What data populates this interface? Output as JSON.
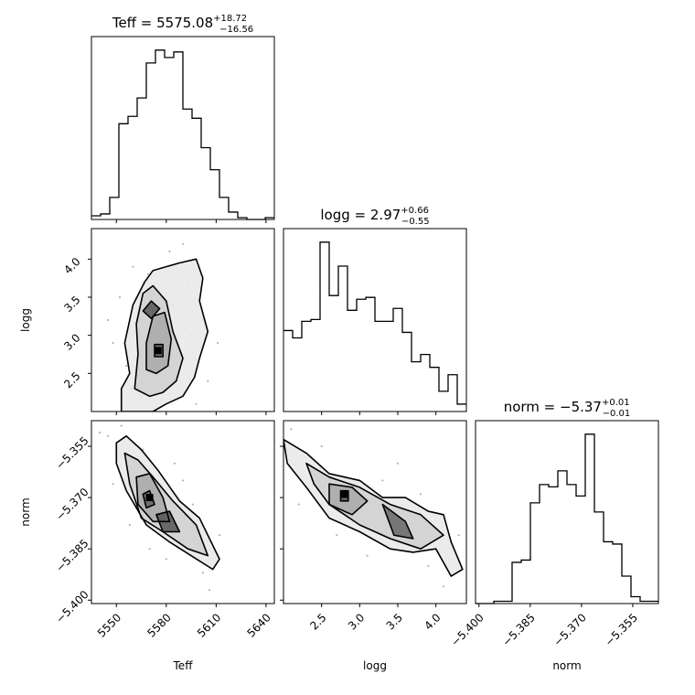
{
  "figure": {
    "type": "corner-plot"
  },
  "chart_data": [
    {
      "type": "histogram",
      "title_param": "Teff",
      "title_value": "5575.08",
      "title_plus": "+18.72",
      "title_minus": "−16.56",
      "x_range": [
        5535,
        5645
      ],
      "bin_edges_start": 5535,
      "bin_width": 5.5,
      "counts": [
        2,
        3,
        12,
        52,
        56,
        66,
        85,
        92,
        88,
        91,
        60,
        55,
        39,
        27,
        12,
        4,
        1,
        0,
        0,
        1
      ]
    },
    {
      "type": "histogram",
      "title_param": "logg",
      "title_value": "2.97",
      "title_plus": "+0.66",
      "title_minus": "−0.55",
      "x_range": [
        2.0,
        4.4
      ],
      "bin_edges_start": 2.0,
      "bin_width": 0.12,
      "counts": [
        44,
        40,
        49,
        50,
        92,
        63,
        79,
        55,
        61,
        62,
        49,
        49,
        56,
        43,
        27,
        31,
        24,
        11,
        20,
        4
      ]
    },
    {
      "type": "histogram",
      "title_param": "norm",
      "title_value": "−5.37",
      "title_plus": "+0.01",
      "title_minus": "−0.01",
      "x_range": [
        -5.401,
        -5.3475
      ],
      "bin_edges_start": -5.401,
      "bin_width": 0.002675,
      "counts": [
        0,
        0,
        1,
        1,
        18,
        19,
        44,
        52,
        51,
        58,
        52,
        47,
        74,
        40,
        27,
        26,
        12,
        3,
        1,
        1
      ]
    },
    {
      "type": "scatter-contour",
      "x_param": "Teff",
      "y_param": "logg",
      "x_range": [
        5535,
        5645
      ],
      "y_range": [
        2.0,
        4.4
      ],
      "center": [
        5575,
        2.8
      ],
      "contours": [
        [
          [
            5553,
            2.0
          ],
          [
            5553,
            2.3
          ],
          [
            5558,
            2.5
          ],
          [
            5555,
            2.9
          ],
          [
            5560,
            3.4
          ],
          [
            5567,
            3.7
          ],
          [
            5572,
            3.85
          ],
          [
            5580,
            3.9
          ],
          [
            5588,
            3.95
          ],
          [
            5598,
            4.0
          ],
          [
            5602,
            3.75
          ],
          [
            5600,
            3.45
          ],
          [
            5605,
            3.05
          ],
          [
            5600,
            2.7
          ],
          [
            5597,
            2.45
          ],
          [
            5590,
            2.2
          ],
          [
            5580,
            2.1
          ],
          [
            5572,
            2.0
          ]
        ],
        [
          [
            5561,
            2.3
          ],
          [
            5563,
            2.75
          ],
          [
            5562,
            3.15
          ],
          [
            5566,
            3.55
          ],
          [
            5572,
            3.65
          ],
          [
            5580,
            3.45
          ],
          [
            5584,
            3.05
          ],
          [
            5590,
            2.7
          ],
          [
            5586,
            2.4
          ],
          [
            5578,
            2.25
          ],
          [
            5570,
            2.2
          ]
        ],
        [
          [
            5568,
            2.55
          ],
          [
            5568,
            2.9
          ],
          [
            5572,
            3.25
          ],
          [
            5579,
            3.3
          ],
          [
            5583,
            2.95
          ],
          [
            5581,
            2.6
          ],
          [
            5574,
            2.5
          ]
        ],
        [
          [
            5573,
            2.72
          ],
          [
            5573,
            2.88
          ],
          [
            5578,
            2.88
          ],
          [
            5578,
            2.72
          ]
        ],
        [
          [
            5566,
            3.32
          ],
          [
            5571,
            3.45
          ],
          [
            5576,
            3.35
          ],
          [
            5571,
            3.22
          ]
        ]
      ],
      "points": [
        [
          5556,
          2.6
        ],
        [
          5560,
          3.9
        ],
        [
          5590,
          4.2
        ],
        [
          5602,
          3.2
        ],
        [
          5548,
          2.9
        ],
        [
          5565,
          2.2
        ],
        [
          5593,
          3.7
        ],
        [
          5605,
          2.4
        ],
        [
          5552,
          3.5
        ],
        [
          5582,
          4.1
        ],
        [
          5574,
          2.0
        ],
        [
          5611,
          2.9
        ],
        [
          5545,
          3.2
        ],
        [
          5587,
          2.5
        ],
        [
          5569,
          3.8
        ],
        [
          5598,
          2.1
        ],
        [
          5559,
          2.3
        ],
        [
          5584,
          3.4
        ],
        [
          5566,
          3.0
        ],
        [
          5595,
          3.0
        ]
      ]
    },
    {
      "type": "scatter-contour",
      "x_param": "Teff",
      "y_param": "norm",
      "x_range": [
        5535,
        5645
      ],
      "y_range": [
        -5.401,
        -5.3475
      ],
      "center": [
        5570,
        -5.37
      ],
      "contours": [
        [
          [
            5550,
            -5.354
          ],
          [
            5556,
            -5.352
          ],
          [
            5565,
            -5.356
          ],
          [
            5575,
            -5.362
          ],
          [
            5588,
            -5.371
          ],
          [
            5600,
            -5.376
          ],
          [
            5612,
            -5.388
          ],
          [
            5608,
            -5.391
          ],
          [
            5595,
            -5.387
          ],
          [
            5582,
            -5.383
          ],
          [
            5568,
            -5.378
          ],
          [
            5556,
            -5.368
          ],
          [
            5550,
            -5.36
          ]
        ],
        [
          [
            5555,
            -5.357
          ],
          [
            5563,
            -5.359
          ],
          [
            5572,
            -5.364
          ],
          [
            5584,
            -5.371
          ],
          [
            5598,
            -5.378
          ],
          [
            5605,
            -5.387
          ],
          [
            5593,
            -5.385
          ],
          [
            5578,
            -5.38
          ],
          [
            5565,
            -5.376
          ],
          [
            5558,
            -5.366
          ]
        ],
        [
          [
            5562,
            -5.364
          ],
          [
            5570,
            -5.363
          ],
          [
            5578,
            -5.37
          ],
          [
            5582,
            -5.377
          ],
          [
            5572,
            -5.377
          ],
          [
            5563,
            -5.372
          ]
        ],
        [
          [
            5566,
            -5.369
          ],
          [
            5570,
            -5.368
          ],
          [
            5573,
            -5.372
          ],
          [
            5568,
            -5.373
          ]
        ],
        [
          [
            5574,
            -5.375
          ],
          [
            5582,
            -5.374
          ],
          [
            5588,
            -5.38
          ],
          [
            5578,
            -5.38
          ]
        ]
      ],
      "points": [
        [
          5545,
          -5.352
        ],
        [
          5553,
          -5.349
        ],
        [
          5560,
          -5.362
        ],
        [
          5570,
          -5.385
        ],
        [
          5590,
          -5.365
        ],
        [
          5602,
          -5.392
        ],
        [
          5612,
          -5.381
        ],
        [
          5580,
          -5.388
        ],
        [
          5548,
          -5.366
        ],
        [
          5596,
          -5.372
        ],
        [
          5558,
          -5.378
        ],
        [
          5606,
          -5.397
        ],
        [
          5566,
          -5.356
        ],
        [
          5585,
          -5.36
        ],
        [
          5540,
          -5.351
        ]
      ]
    },
    {
      "type": "scatter-contour",
      "x_param": "logg",
      "y_param": "norm",
      "x_range": [
        2.0,
        4.4
      ],
      "y_range": [
        -5.401,
        -5.3475
      ],
      "center": [
        2.8,
        -5.369
      ],
      "contours": [
        [
          [
            2.0,
            -5.353
          ],
          [
            2.3,
            -5.357
          ],
          [
            2.6,
            -5.363
          ],
          [
            3.0,
            -5.365
          ],
          [
            3.3,
            -5.37
          ],
          [
            3.6,
            -5.37
          ],
          [
            3.9,
            -5.374
          ],
          [
            4.1,
            -5.375
          ],
          [
            4.2,
            -5.383
          ],
          [
            4.35,
            -5.391
          ],
          [
            4.2,
            -5.393
          ],
          [
            4.0,
            -5.385
          ],
          [
            3.7,
            -5.386
          ],
          [
            3.4,
            -5.385
          ],
          [
            3.0,
            -5.38
          ],
          [
            2.6,
            -5.376
          ],
          [
            2.3,
            -5.367
          ],
          [
            2.05,
            -5.36
          ]
        ],
        [
          [
            2.3,
            -5.36
          ],
          [
            2.6,
            -5.364
          ],
          [
            3.0,
            -5.367
          ],
          [
            3.4,
            -5.372
          ],
          [
            3.8,
            -5.375
          ],
          [
            4.1,
            -5.381
          ],
          [
            3.8,
            -5.385
          ],
          [
            3.4,
            -5.382
          ],
          [
            3.0,
            -5.378
          ],
          [
            2.6,
            -5.372
          ],
          [
            2.4,
            -5.366
          ]
        ],
        [
          [
            2.6,
            -5.366
          ],
          [
            2.9,
            -5.367
          ],
          [
            3.1,
            -5.371
          ],
          [
            2.9,
            -5.375
          ],
          [
            2.6,
            -5.372
          ]
        ],
        [
          [
            3.3,
            -5.372
          ],
          [
            3.6,
            -5.377
          ],
          [
            3.7,
            -5.382
          ],
          [
            3.45,
            -5.381
          ]
        ],
        [
          [
            2.75,
            -5.368
          ],
          [
            2.85,
            -5.368
          ],
          [
            2.85,
            -5.371
          ],
          [
            2.75,
            -5.371
          ]
        ]
      ],
      "points": [
        [
          2.1,
          -5.35
        ],
        [
          2.5,
          -5.355
        ],
        [
          3.5,
          -5.36
        ],
        [
          3.9,
          -5.39
        ],
        [
          4.3,
          -5.381
        ],
        [
          2.2,
          -5.372
        ],
        [
          3.1,
          -5.387
        ],
        [
          2.7,
          -5.381
        ],
        [
          3.8,
          -5.369
        ],
        [
          4.1,
          -5.396
        ],
        [
          2.4,
          -5.359
        ],
        [
          3.3,
          -5.365
        ]
      ]
    }
  ],
  "axes": {
    "teff": {
      "label": "Teff",
      "ticks": [
        5550,
        5580,
        5610,
        5640
      ],
      "tick_labels": [
        "5550",
        "5580",
        "5610",
        "5640"
      ]
    },
    "logg": {
      "label": "logg",
      "ticks": [
        2.5,
        3.0,
        3.5,
        4.0
      ],
      "tick_labels": [
        "2.5",
        "3.0",
        "3.5",
        "4.0"
      ]
    },
    "norm": {
      "label": "norm",
      "ticks": [
        -5.4,
        -5.385,
        -5.37,
        -5.355
      ],
      "tick_labels": [
        "−5.400",
        "−5.385",
        "−5.370",
        "−5.355"
      ]
    }
  },
  "colors": {
    "ink": "#000000",
    "scatter_point": "#b3b3b3",
    "density_dark": "#666666",
    "density_light": "#e8e8e8"
  }
}
